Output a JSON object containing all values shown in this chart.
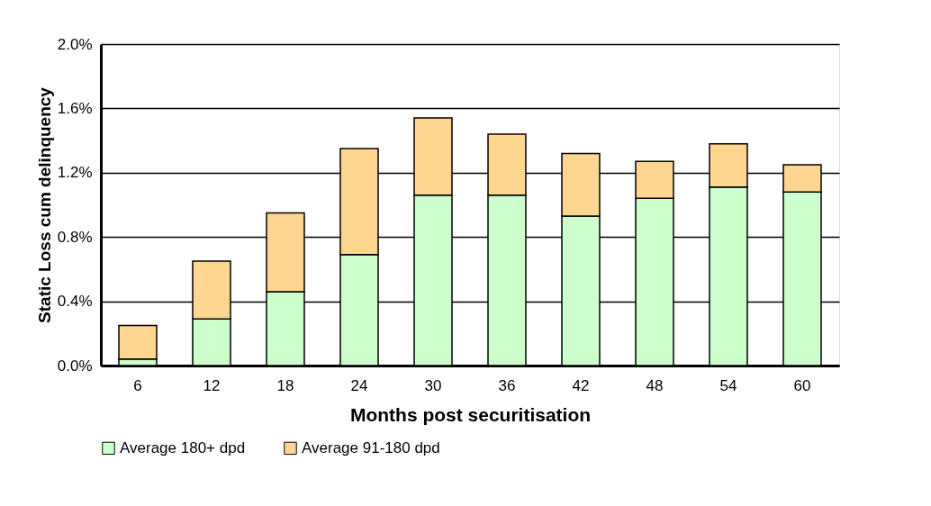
{
  "chart_data": {
    "type": "bar",
    "stacked": true,
    "xlabel": "Months post securitisation",
    "ylabel": "Static Loss cum delinquency",
    "categories": [
      "6",
      "12",
      "18",
      "24",
      "30",
      "36",
      "42",
      "48",
      "54",
      "60"
    ],
    "series": [
      {
        "name": "Average 180+ dpd",
        "color": "#ccffcc",
        "values": [
          0.04,
          0.29,
          0.46,
          0.69,
          1.06,
          1.06,
          0.93,
          1.04,
          1.11,
          1.08
        ]
      },
      {
        "name": "Average 91-180 dpd",
        "color": "#ffd68f",
        "values": [
          0.21,
          0.36,
          0.49,
          0.66,
          0.48,
          0.38,
          0.39,
          0.23,
          0.27,
          0.17
        ]
      }
    ],
    "ylim": [
      0,
      2.0
    ],
    "yticks": [
      {
        "value": 0,
        "label": "0.0%"
      },
      {
        "value": 0.4,
        "label": "0.4%"
      },
      {
        "value": 0.8,
        "label": "0.8%"
      },
      {
        "value": 1.2,
        "label": "1.2%"
      },
      {
        "value": 1.6,
        "label": "1.6%"
      },
      {
        "value": 2.0,
        "label": "2.0%"
      }
    ],
    "grid": "y",
    "legend": "bottom"
  }
}
